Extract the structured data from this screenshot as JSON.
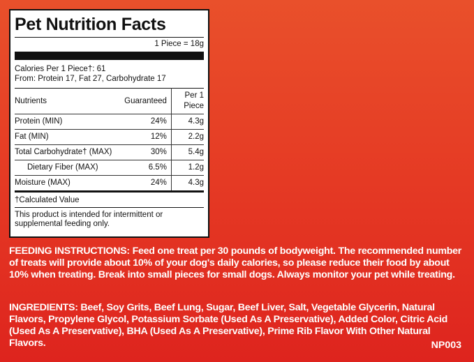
{
  "nutrition_facts": {
    "title": "Pet Nutrition Facts",
    "serving": "1 Piece = 18g",
    "calories": "Calories Per 1 Piece†: 61",
    "calories_from": "From: Protein 17, Fat 27, Carbohydrate 17",
    "table": {
      "header": [
        "Nutrients",
        "Guaranteed",
        "Per 1 Piece"
      ],
      "rows": [
        [
          "Protein (MIN)",
          "24%",
          "4.3g"
        ],
        [
          "Fat (MIN)",
          "12%",
          "2.2g"
        ],
        [
          "Total Carbohydrate† (MAX)",
          "30%",
          "5.4g"
        ],
        [
          "Dietary Fiber (MAX)",
          "6.5%",
          "1.2g"
        ],
        [
          "Moisture (MAX)",
          "24%",
          "4.3g"
        ]
      ]
    },
    "footnote": "†Calculated Value",
    "note": "This product is intended for intermittent or supplemental feeding only."
  },
  "feeding": {
    "label": "FEEDING INSTRUCTIONS:",
    "text": "Feed one treat per 30 pounds of bodyweight. The recommended number of treats will provide about 10% of your dog's daily calories, so please reduce their food by about 10% when treating. Break into small pieces for small dogs. Always monitor your pet while treating."
  },
  "ingredients": {
    "label": "INGREDIENTS:",
    "text": "Beef, Soy Grits, Beef Lung, Sugar, Beef Liver, Salt, Vegetable Glycerin, Natural Flavors, Propylene Glycol, Potassium Sorbate (Used As A Preservative), Added Color, Citric Acid (Used As A Preservative), BHA (Used As A Preservative), Prime Rib Flavor With Other Natural Flavors."
  },
  "code": "NP003"
}
